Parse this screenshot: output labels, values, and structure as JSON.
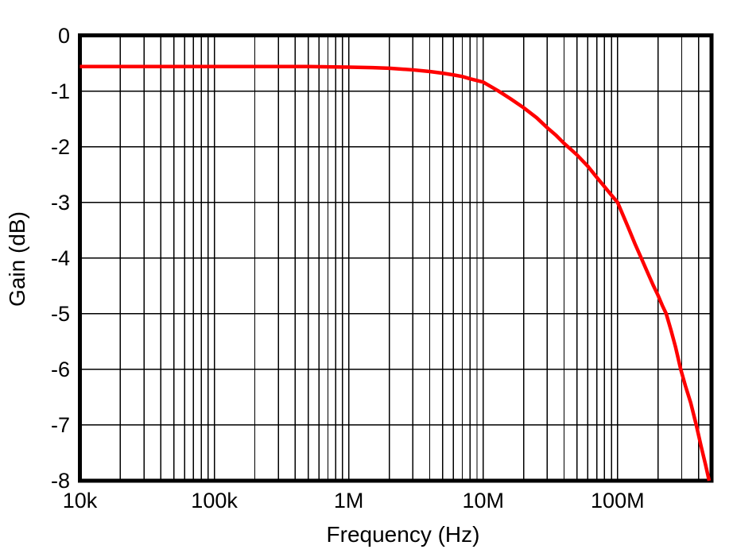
{
  "chart_data": {
    "type": "line",
    "title": "",
    "xlabel": "Frequency (Hz)",
    "ylabel": "Gain (dB)",
    "x_scale": "log",
    "xlim": [
      10000,
      500000000
    ],
    "ylim": [
      -8,
      0
    ],
    "grid": {
      "x_major": true,
      "x_minor": true,
      "y_major": true,
      "y_minor": false
    },
    "legend": "none",
    "x_ticks": [
      {
        "value": 10000,
        "label": "10k"
      },
      {
        "value": 100000,
        "label": "100k"
      },
      {
        "value": 1000000,
        "label": "1M"
      },
      {
        "value": 10000000,
        "label": "10M"
      },
      {
        "value": 100000000,
        "label": "100M"
      }
    ],
    "y_ticks": [
      {
        "value": 0,
        "label": "0"
      },
      {
        "value": -1,
        "label": "-1"
      },
      {
        "value": -2,
        "label": "-2"
      },
      {
        "value": -3,
        "label": "-3"
      },
      {
        "value": -4,
        "label": "-4"
      },
      {
        "value": -5,
        "label": "-5"
      },
      {
        "value": -6,
        "label": "-6"
      },
      {
        "value": -7,
        "label": "-7"
      },
      {
        "value": -8,
        "label": "-8"
      }
    ],
    "series": [
      {
        "name": "Gain",
        "color": "#ff0000",
        "points": [
          [
            10000,
            -0.56
          ],
          [
            20000,
            -0.56
          ],
          [
            50000,
            -0.56
          ],
          [
            100000,
            -0.56
          ],
          [
            200000,
            -0.56
          ],
          [
            500000,
            -0.56
          ],
          [
            1000000,
            -0.57
          ],
          [
            1500000,
            -0.58
          ],
          [
            2000000,
            -0.59
          ],
          [
            3000000,
            -0.62
          ],
          [
            4000000,
            -0.65
          ],
          [
            5000000,
            -0.68
          ],
          [
            6000000,
            -0.71
          ],
          [
            7000000,
            -0.74
          ],
          [
            8000000,
            -0.78
          ],
          [
            10000000,
            -0.84
          ],
          [
            13000000,
            -1.0
          ],
          [
            16000000,
            -1.14
          ],
          [
            20000000,
            -1.3
          ],
          [
            25000000,
            -1.48
          ],
          [
            30000000,
            -1.66
          ],
          [
            35000000,
            -1.8
          ],
          [
            40000000,
            -1.94
          ],
          [
            45000000,
            -2.05
          ],
          [
            50000000,
            -2.15
          ],
          [
            60000000,
            -2.35
          ],
          [
            70000000,
            -2.55
          ],
          [
            80000000,
            -2.72
          ],
          [
            90000000,
            -2.87
          ],
          [
            100000000,
            -3.0
          ],
          [
            120000000,
            -3.45
          ],
          [
            135000000,
            -3.75
          ],
          [
            150000000,
            -4.0
          ],
          [
            170000000,
            -4.3
          ],
          [
            185000000,
            -4.5
          ],
          [
            200000000,
            -4.67
          ],
          [
            215000000,
            -4.85
          ],
          [
            230000000,
            -5.0
          ],
          [
            250000000,
            -5.3
          ],
          [
            270000000,
            -5.6
          ],
          [
            295000000,
            -6.0
          ],
          [
            320000000,
            -6.3
          ],
          [
            350000000,
            -6.6
          ],
          [
            385000000,
            -7.0
          ],
          [
            420000000,
            -7.4
          ],
          [
            450000000,
            -7.7
          ],
          [
            480000000,
            -8.0
          ]
        ]
      }
    ],
    "colors": {
      "curve": "#ff0000",
      "grid": "#000000",
      "frame": "#000000",
      "text": "#000000",
      "background": "#ffffff"
    }
  }
}
